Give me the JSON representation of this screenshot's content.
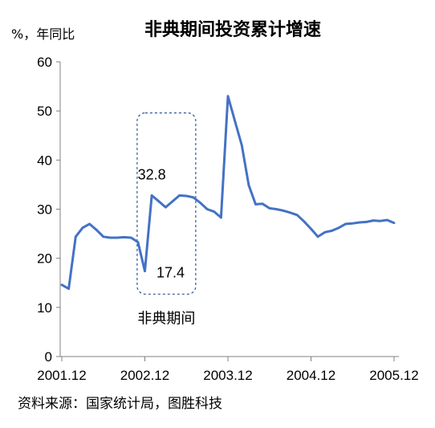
{
  "chart_data": {
    "type": "line",
    "title": "非典期间投资累计增速",
    "ylabel": "%，年同比",
    "ylim": [
      0,
      60
    ],
    "yticks": [
      "0",
      "10",
      "20",
      "30",
      "40",
      "50",
      "60"
    ],
    "xticks": [
      "2001.12",
      "2002.12",
      "2003.12",
      "2004.12",
      "2005.12"
    ],
    "grid": false,
    "color": "#4472C4",
    "series": [
      {
        "x": [
          "2001.12",
          "2002.01",
          "2002.02",
          "2002.03",
          "2002.04",
          "2002.05",
          "2002.06",
          "2002.07",
          "2002.08",
          "2002.09",
          "2002.10",
          "2002.11",
          "2002.12",
          "2003.01",
          "2003.02",
          "2003.03",
          "2003.04",
          "2003.05",
          "2003.06",
          "2003.07",
          "2003.08",
          "2003.09",
          "2003.10",
          "2003.11",
          "2003.12",
          "2004.01",
          "2004.02",
          "2004.03",
          "2004.04",
          "2004.05",
          "2004.06",
          "2004.07",
          "2004.08",
          "2004.09",
          "2004.10",
          "2004.11",
          "2004.12",
          "2005.01",
          "2005.02",
          "2005.03",
          "2005.04",
          "2005.05",
          "2005.06",
          "2005.07",
          "2005.08",
          "2005.09",
          "2005.10",
          "2005.11",
          "2005.12"
        ],
        "values": [
          14.6,
          13.8,
          24.4,
          26.2,
          27.0,
          25.8,
          24.4,
          24.2,
          24.2,
          24.3,
          24.2,
          23.3,
          17.4,
          32.8,
          31.6,
          30.4,
          31.6,
          32.8,
          32.7,
          32.4,
          31.3,
          30.0,
          29.5,
          28.3,
          53.0,
          48.0,
          43.0,
          34.9,
          31.0,
          31.1,
          30.2,
          30.0,
          29.7,
          29.3,
          28.8,
          27.5,
          26.0,
          24.4,
          25.3,
          25.6,
          26.2,
          27.0,
          27.1,
          27.3,
          27.4,
          27.7,
          27.6,
          27.8,
          27.2
        ]
      }
    ],
    "annotations": [
      {
        "text": "32.8",
        "x": "2003.01",
        "y": 32.8
      },
      {
        "text": "17.4",
        "x": "2002.12",
        "y": 17.4
      }
    ],
    "highlight": {
      "label": "非典期间",
      "x_start": "2002.11",
      "x_end": "2003.07"
    }
  },
  "source": "资料来源：国家统计局，图胜科技"
}
